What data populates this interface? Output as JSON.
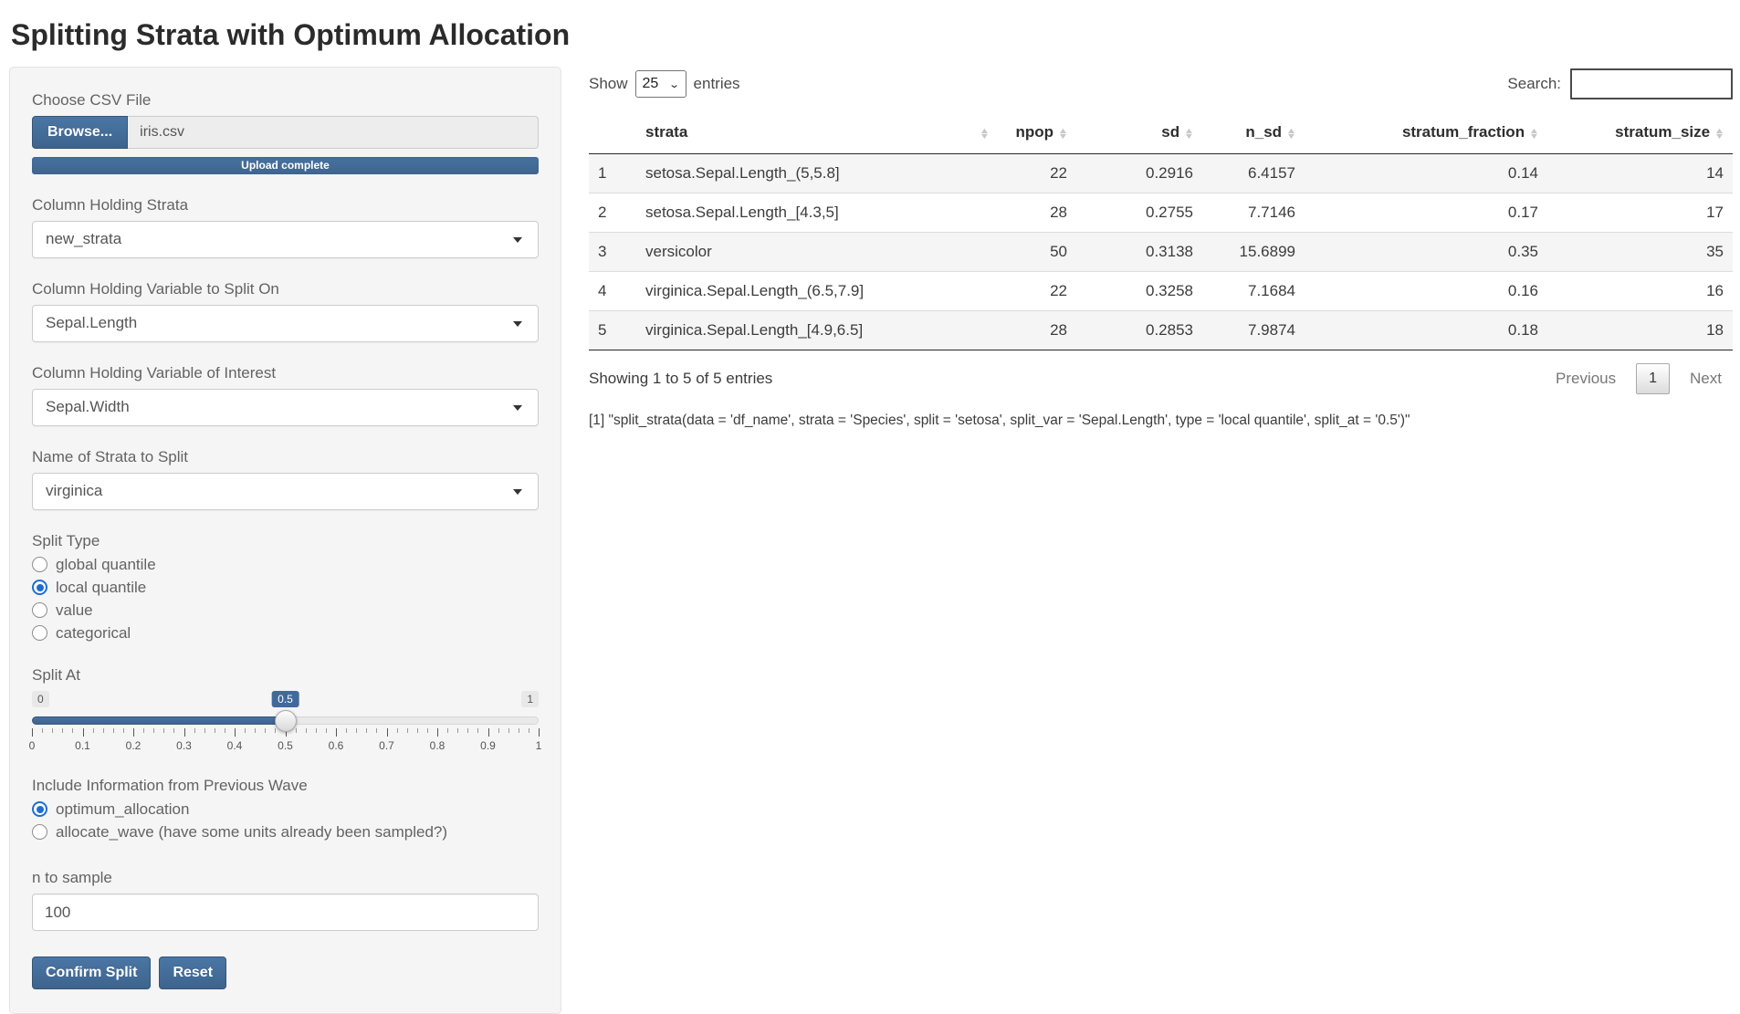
{
  "page": {
    "title": "Splitting Strata with Optimum Allocation"
  },
  "sidebar": {
    "file_input": {
      "label": "Choose CSV File",
      "button": "Browse...",
      "filename": "iris.csv",
      "progress": "Upload complete"
    },
    "selects": [
      {
        "label": "Column Holding Strata",
        "value": "new_strata"
      },
      {
        "label": "Column Holding Variable to Split On",
        "value": "Sepal.Length"
      },
      {
        "label": "Column Holding Variable of Interest",
        "value": "Sepal.Width"
      },
      {
        "label": "Name of Strata to Split",
        "value": "virginica"
      }
    ],
    "split_type": {
      "label": "Split Type",
      "options": [
        {
          "label": "global quantile",
          "selected": false
        },
        {
          "label": "local quantile",
          "selected": true
        },
        {
          "label": "value",
          "selected": false
        },
        {
          "label": "categorical",
          "selected": false
        }
      ]
    },
    "split_at": {
      "label": "Split At",
      "min": "0",
      "max": "1",
      "value": "0.5",
      "value_pct": 50,
      "grid_labels": [
        "0",
        "0.1",
        "0.2",
        "0.3",
        "0.4",
        "0.5",
        "0.6",
        "0.7",
        "0.8",
        "0.9",
        "1"
      ]
    },
    "wave": {
      "label": "Include Information from Previous Wave",
      "options": [
        {
          "label": "optimum_allocation",
          "selected": true
        },
        {
          "label": "allocate_wave (have some units already been sampled?)",
          "selected": false
        }
      ]
    },
    "n_to_sample": {
      "label": "n to sample",
      "value": "100"
    },
    "buttons": {
      "confirm": "Confirm Split",
      "reset": "Reset"
    }
  },
  "table": {
    "show_label": "Show",
    "page_length": "25",
    "entries_label": "entries",
    "search_label": "Search:",
    "search_value": "",
    "columns": [
      "strata",
      "npop",
      "sd",
      "n_sd",
      "stratum_fraction",
      "stratum_size"
    ],
    "rows": [
      [
        "1",
        "setosa.Sepal.Length_(5,5.8]",
        "22",
        "0.2916",
        "6.4157",
        "0.14",
        "14"
      ],
      [
        "2",
        "setosa.Sepal.Length_[4.3,5]",
        "28",
        "0.2755",
        "7.7146",
        "0.17",
        "17"
      ],
      [
        "3",
        "versicolor",
        "50",
        "0.3138",
        "15.6899",
        "0.35",
        "35"
      ],
      [
        "4",
        "virginica.Sepal.Length_(6.5,7.9]",
        "22",
        "0.3258",
        "7.1684",
        "0.16",
        "16"
      ],
      [
        "5",
        "virginica.Sepal.Length_[4.9,6.5]",
        "28",
        "0.2853",
        "7.9874",
        "0.18",
        "18"
      ]
    ],
    "info": "Showing 1 to 5 of 5 entries",
    "pagination": {
      "previous": "Previous",
      "page": "1",
      "next": "Next"
    }
  },
  "output": {
    "code": "[1] \"split_strata(data = 'df_name', strata = 'Species', split = 'setosa', split_var = 'Sepal.Length', type = 'local quantile', split_at = '0.5')\""
  }
}
